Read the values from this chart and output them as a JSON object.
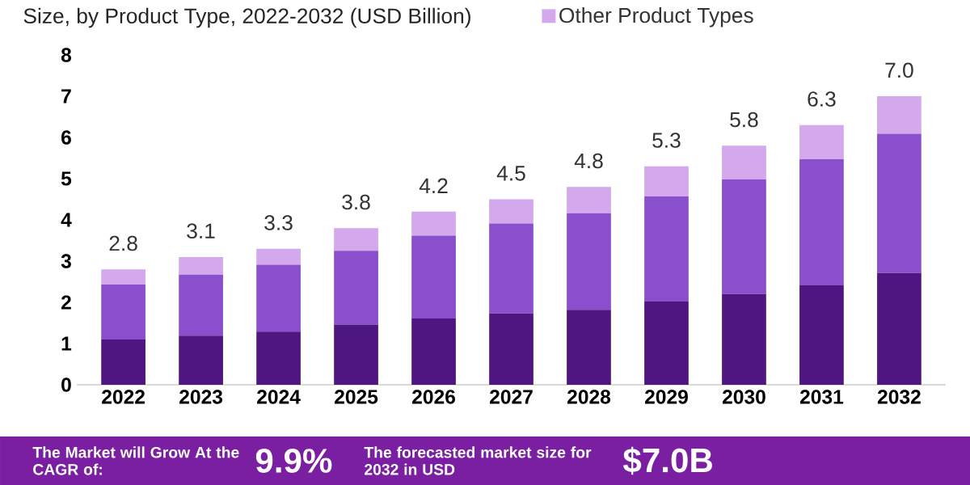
{
  "chart_data": {
    "type": "bar",
    "stacked": true,
    "subtitle": "Size, by Product Type, 2022-2032 (USD Billion)",
    "categories": [
      "2022",
      "2023",
      "2024",
      "2025",
      "2026",
      "2027",
      "2028",
      "2029",
      "2030",
      "2031",
      "2032"
    ],
    "series": [
      {
        "color": "#4e1681",
        "values": [
          1.1,
          1.19,
          1.29,
          1.46,
          1.61,
          1.73,
          1.82,
          2.02,
          2.2,
          2.41,
          2.71
        ]
      },
      {
        "color": "#8a4fcc",
        "values": [
          1.33,
          1.48,
          1.62,
          1.79,
          2.01,
          2.18,
          2.34,
          2.55,
          2.78,
          3.06,
          3.38
        ]
      },
      {
        "name": "Other Product Types",
        "color": "#d3a8ec",
        "values": [
          0.37,
          0.43,
          0.39,
          0.55,
          0.58,
          0.59,
          0.64,
          0.73,
          0.82,
          0.83,
          0.91
        ]
      }
    ],
    "totals": [
      "2.8",
      "3.1",
      "3.3",
      "3.8",
      "4.2",
      "4.5",
      "4.8",
      "5.3",
      "5.8",
      "6.3",
      "7.0"
    ],
    "ylim": [
      0,
      8
    ],
    "yticks": [
      0,
      1,
      2,
      3,
      4,
      5,
      6,
      7,
      8
    ],
    "legend": "top",
    "annotations": [
      "The Market will Grow At the CAGR of:",
      "9.9%",
      "The forecasted market size for 2032 in USD",
      "$7.0B"
    ]
  }
}
